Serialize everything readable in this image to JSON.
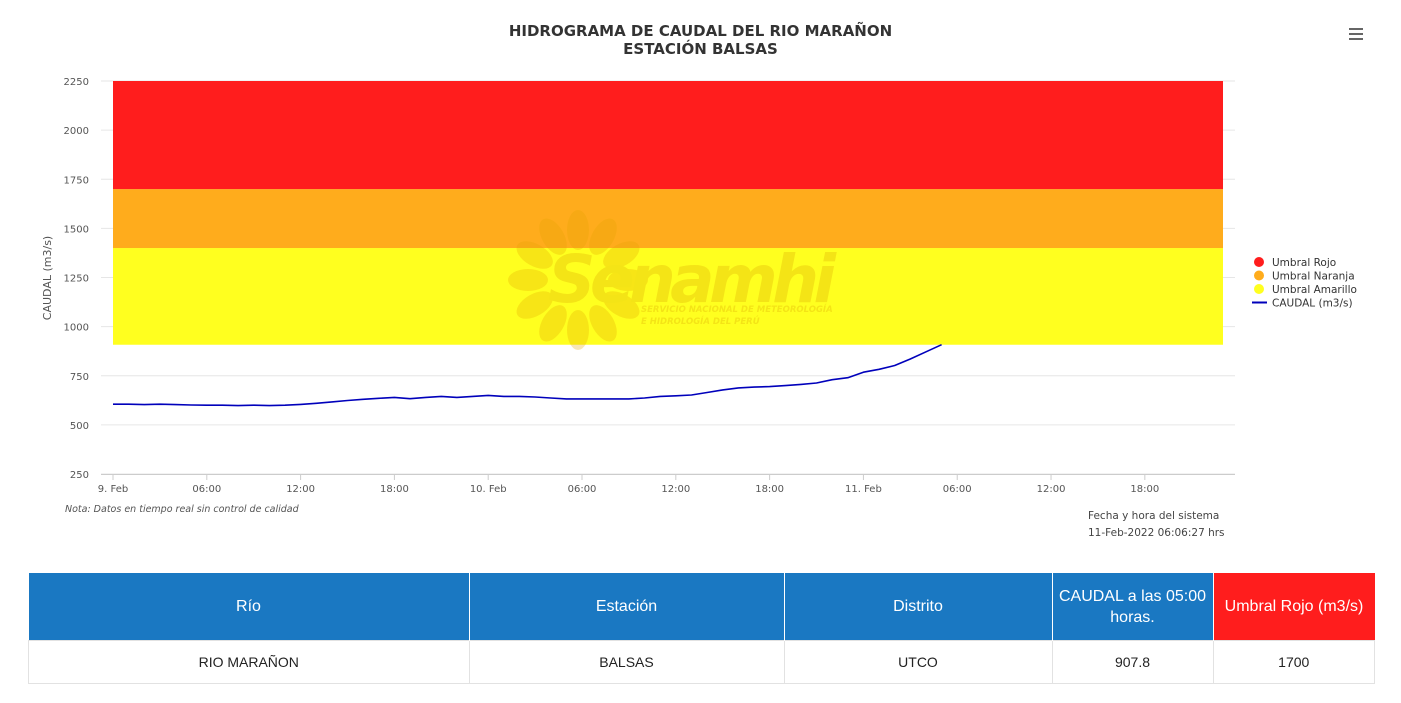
{
  "chart_data": {
    "type": "line",
    "title": "HIDROGRAMA DE CAUDAL DEL RIO MARAÑON",
    "subtitle": "ESTACIÓN BALSAS",
    "ylabel": "CAUDAL (m3/s)",
    "xlabel": "",
    "ylim": [
      250,
      2250
    ],
    "y_ticks": [
      250,
      500,
      750,
      1000,
      1250,
      1500,
      1750,
      2000,
      2250
    ],
    "xlim": [
      "2022-02-09T00:00",
      "2022-02-11T23:00"
    ],
    "x_ticks": [
      {
        "at": "2022-02-09T00:00",
        "label": "9. Feb"
      },
      {
        "at": "2022-02-09T06:00",
        "label": "06:00"
      },
      {
        "at": "2022-02-09T12:00",
        "label": "12:00"
      },
      {
        "at": "2022-02-09T18:00",
        "label": "18:00"
      },
      {
        "at": "2022-02-10T00:00",
        "label": "10. Feb"
      },
      {
        "at": "2022-02-10T06:00",
        "label": "06:00"
      },
      {
        "at": "2022-02-10T12:00",
        "label": "12:00"
      },
      {
        "at": "2022-02-10T18:00",
        "label": "18:00"
      },
      {
        "at": "2022-02-11T00:00",
        "label": "11. Feb"
      },
      {
        "at": "2022-02-11T06:00",
        "label": "06:00"
      },
      {
        "at": "2022-02-11T12:00",
        "label": "12:00"
      },
      {
        "at": "2022-02-11T18:00",
        "label": "18:00"
      }
    ],
    "bands": [
      {
        "name": "Umbral Amarillo",
        "from": 907.8,
        "to": 1400,
        "color": "#ffff1f"
      },
      {
        "name": "Umbral Naranja",
        "from": 1400,
        "to": 1700,
        "color": "#ffac1c"
      },
      {
        "name": "Umbral Rojo",
        "from": 1700,
        "to": 2250,
        "color": "#ff1d1d"
      }
    ],
    "bands_x_range": [
      "2022-02-09T00:00",
      "2022-02-11T23:00"
    ],
    "series": [
      {
        "name": "CAUDAL (m3/s)",
        "color": "#0000bb",
        "x": [
          "2022-02-09T00:00",
          "2022-02-09T01:00",
          "2022-02-09T02:00",
          "2022-02-09T03:00",
          "2022-02-09T04:00",
          "2022-02-09T05:00",
          "2022-02-09T06:00",
          "2022-02-09T07:00",
          "2022-02-09T08:00",
          "2022-02-09T09:00",
          "2022-02-09T10:00",
          "2022-02-09T11:00",
          "2022-02-09T12:00",
          "2022-02-09T13:00",
          "2022-02-09T14:00",
          "2022-02-09T15:00",
          "2022-02-09T16:00",
          "2022-02-09T17:00",
          "2022-02-09T18:00",
          "2022-02-09T19:00",
          "2022-02-09T20:00",
          "2022-02-09T21:00",
          "2022-02-09T22:00",
          "2022-02-09T23:00",
          "2022-02-10T00:00",
          "2022-02-10T01:00",
          "2022-02-10T02:00",
          "2022-02-10T03:00",
          "2022-02-10T04:00",
          "2022-02-10T05:00",
          "2022-02-10T06:00",
          "2022-02-10T07:00",
          "2022-02-10T08:00",
          "2022-02-10T09:00",
          "2022-02-10T10:00",
          "2022-02-10T11:00",
          "2022-02-10T12:00",
          "2022-02-10T13:00",
          "2022-02-10T14:00",
          "2022-02-10T15:00",
          "2022-02-10T16:00",
          "2022-02-10T17:00",
          "2022-02-10T18:00",
          "2022-02-10T19:00",
          "2022-02-10T20:00",
          "2022-02-10T21:00",
          "2022-02-10T22:00",
          "2022-02-10T23:00",
          "2022-02-11T00:00",
          "2022-02-11T01:00",
          "2022-02-11T02:00",
          "2022-02-11T03:00",
          "2022-02-11T04:00",
          "2022-02-11T05:00"
        ],
        "values": [
          605,
          605,
          603,
          605,
          603,
          601,
          600,
          600,
          598,
          600,
          598,
          600,
          604,
          610,
          617,
          624,
          630,
          635,
          640,
          633,
          640,
          645,
          640,
          645,
          650,
          645,
          645,
          642,
          637,
          632,
          632,
          632,
          632,
          632,
          637,
          645,
          648,
          652,
          665,
          678,
          688,
          692,
          695,
          700,
          706,
          713,
          730,
          740,
          768,
          783,
          802,
          835,
          872,
          907.8
        ]
      }
    ],
    "legend_position": "right",
    "grid": true
  },
  "watermark": {
    "brand": "Senamhi",
    "line1": "SERVICIO NACIONAL DE METEOROLOGÍA",
    "line2": "E HIDROLOGÍA DEL PERÚ"
  },
  "note": "Nota: Datos en tiempo real sin control de calidad",
  "system_time": {
    "label": "Fecha y hora del sistema",
    "value": "11-Feb-2022 06:06:27 hrs"
  },
  "table": {
    "headers": [
      "Río",
      "Estación",
      "Distrito",
      "CAUDAL a las 05:00 horas.",
      "Umbral Rojo (m3/s)"
    ],
    "header_colors": [
      "#1a78c2",
      "#1a78c2",
      "#1a78c2",
      "#1a78c2",
      "#ff1d1d"
    ],
    "rows": [
      [
        "RIO MARAÑON",
        "BALSAS",
        "UTCO",
        "907.8",
        "1700"
      ]
    ]
  }
}
